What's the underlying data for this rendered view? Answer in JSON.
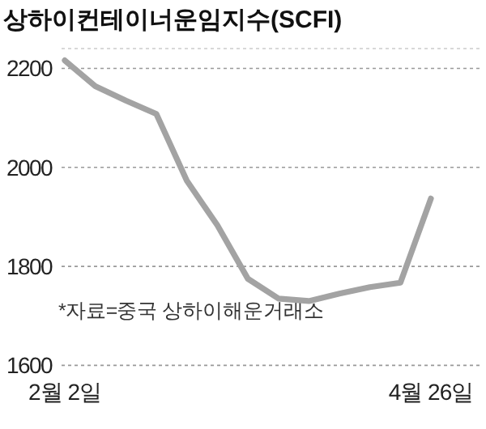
{
  "chart_data": {
    "type": "line",
    "title": "상하이컨테이너운임지수(SCFI)",
    "categories": [
      "2월 2일",
      null,
      null,
      null,
      null,
      null,
      null,
      null,
      null,
      null,
      null,
      null,
      "4월 26일"
    ],
    "values": [
      2216,
      2164,
      2135,
      2108,
      1973,
      1883,
      1775,
      1735,
      1730,
      1745,
      1758,
      1767,
      1937
    ],
    "color": "#a3a3a3",
    "ylim": [
      1600,
      2240
    ],
    "yticks": [
      1600,
      1800,
      2000,
      2200,
      {
        "value": 2240,
        "label": null
      }
    ],
    "grid": "y",
    "annotations": [
      "*자료=중국 상하이해운거래소"
    ]
  }
}
